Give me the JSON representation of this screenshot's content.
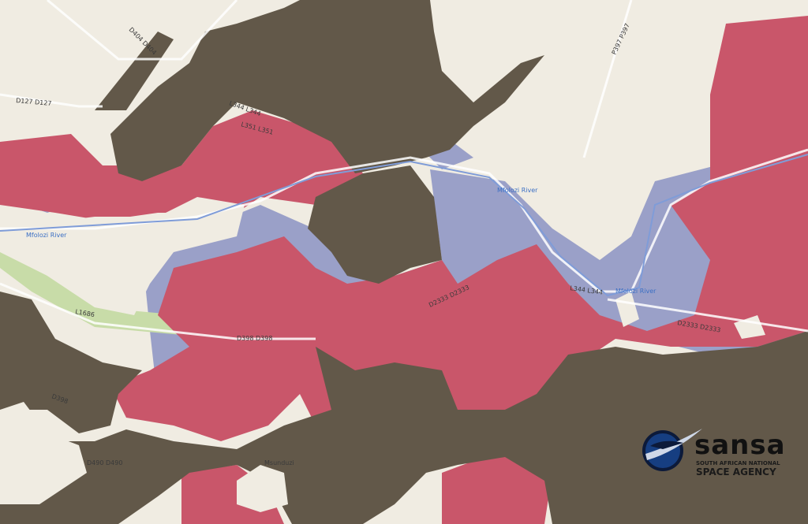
{
  "map": {
    "colors": {
      "background": "#f0ece2",
      "high_risk": "#625849",
      "medium_risk": "#c9566a",
      "low_risk": "#9aa0c8",
      "park": "#c8dca8",
      "road": "#ffffff"
    },
    "road_labels": [
      {
        "text": "D404 D404"
      },
      {
        "text": "D127 D127"
      },
      {
        "text": "L344 L344"
      },
      {
        "text": "L351 L351"
      },
      {
        "text": "P397 P397"
      },
      {
        "text": "L1686"
      },
      {
        "text": "D398 D398"
      },
      {
        "text": "D398"
      },
      {
        "text": "D2333 D2333"
      },
      {
        "text": "L344 L344"
      },
      {
        "text": "D2333 D2333"
      },
      {
        "text": "D490 D490"
      },
      {
        "text": "Msunduzi"
      }
    ],
    "river_labels": [
      {
        "text": "Mfolozi River"
      },
      {
        "text": "Mfolozi River"
      },
      {
        "text": "Mfolozi River"
      }
    ]
  },
  "logo": {
    "word": "sansa",
    "line1": "SOUTH AFRICAN NATIONAL",
    "line2": "SPACE AGENCY"
  }
}
